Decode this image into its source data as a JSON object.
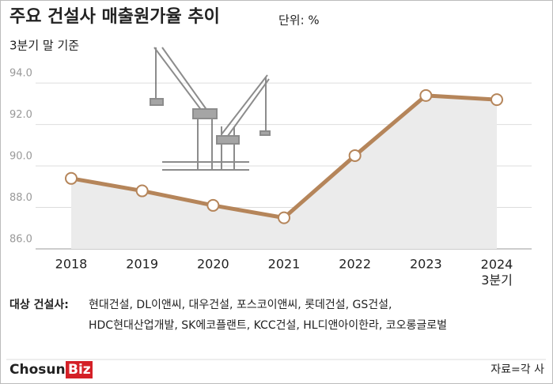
{
  "chart_data": {
    "type": "line",
    "title": "주요 건설사 매출원가율 추이",
    "unit": "단위: %",
    "subtitle": "3분기 말 기준",
    "categories": [
      "2018",
      "2019",
      "2020",
      "2021",
      "2022",
      "2023",
      "2024\n3분기"
    ],
    "series": [
      {
        "name": "매출원가율",
        "color": "#b5855a",
        "values": [
          89.4,
          88.8,
          88.1,
          87.5,
          90.5,
          93.4,
          93.2
        ]
      }
    ],
    "ylim": [
      86,
      94.5
    ],
    "yticks": [
      {
        "value": 86,
        "label": "86.0"
      },
      {
        "value": 88,
        "label": "88.0"
      },
      {
        "value": 90,
        "label": "90.0"
      },
      {
        "value": 92,
        "label": "92.0"
      },
      {
        "value": 94,
        "label": "94.0"
      }
    ],
    "grid": true,
    "note_label": "대상 건설사:",
    "note_lines": [
      "현대건설, DL이앤씨, 대우건설, 포스코이앤씨, 롯데건설, GS건설,",
      "HDC현대산업개발, SK에코플랜트, KCC건설, HL디앤아이한라, 코오롱글로벌"
    ],
    "logo": [
      "Chosun",
      "Biz"
    ],
    "source": "자료=각 사"
  }
}
